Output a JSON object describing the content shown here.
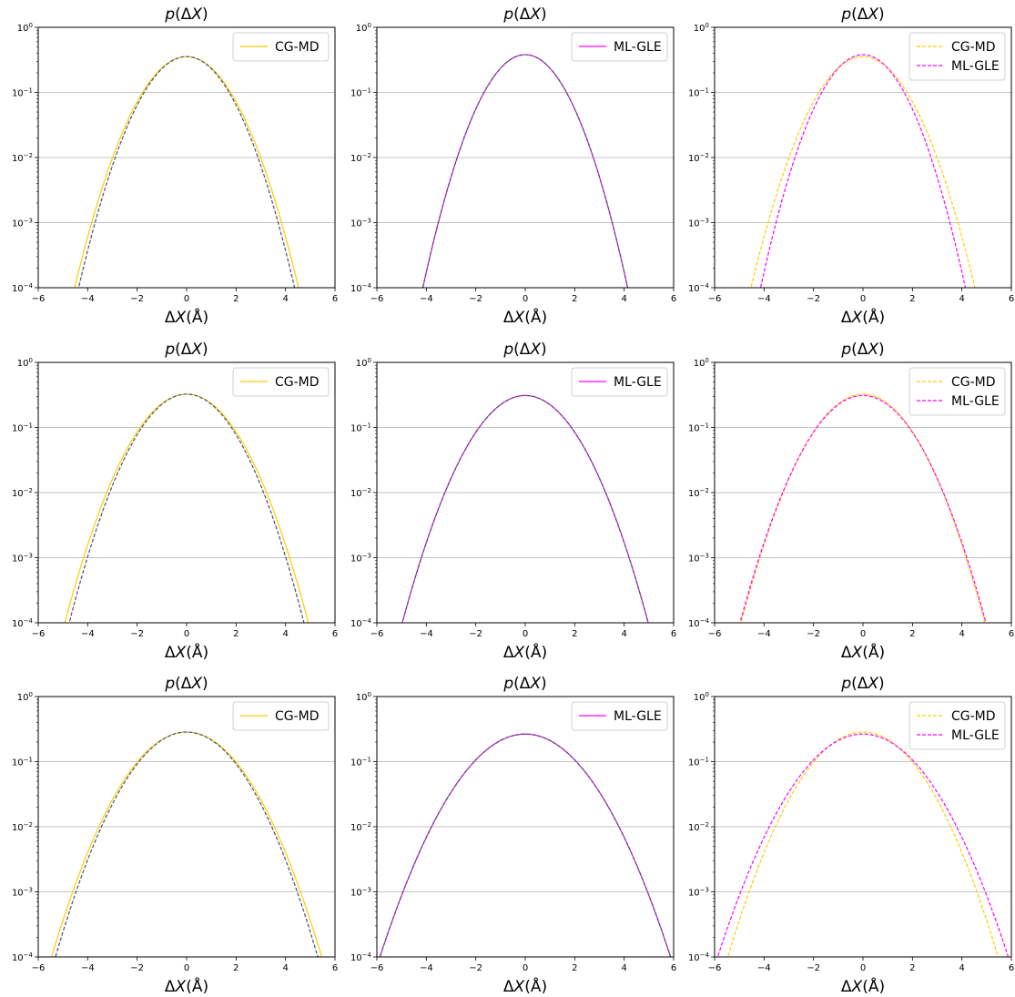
{
  "chart_data": [
    {
      "type": "line",
      "title": "p(ΔX)",
      "xlabel": "ΔX(Å)",
      "ylabel": "",
      "xlim": [
        -6,
        6
      ],
      "ylim": [
        0.0001,
        1
      ],
      "y_scale": "log",
      "x_ticks": [
        "−6",
        "−4",
        "−2",
        "0",
        "2",
        "4",
        "6"
      ],
      "y_ticks": [
        "10−4",
        "10−3",
        "10−2",
        "10−1",
        "100"
      ],
      "grid": "y-major",
      "legend_position": "top-right",
      "series": [
        {
          "name": "CG-MD",
          "style": "solid",
          "color": "#ffcc00",
          "sigma": 1.12,
          "peak": 0.355
        },
        {
          "name": "",
          "style": "dashed",
          "color": "#4a5270",
          "sigma": 1.08,
          "peak": 0.355
        }
      ]
    },
    {
      "type": "line",
      "title": "p(ΔX)",
      "xlabel": "ΔX(Å)",
      "ylabel": "",
      "xlim": [
        -6,
        6
      ],
      "ylim": [
        0.0001,
        1
      ],
      "y_scale": "log",
      "x_ticks": [
        "−6",
        "−4",
        "−2",
        "0",
        "2",
        "4",
        "6"
      ],
      "y_ticks": [
        "10−4",
        "10−3",
        "10−2",
        "10−1",
        "100"
      ],
      "grid": "y-major",
      "legend_position": "top-right",
      "series": [
        {
          "name": "ML-GLE",
          "style": "solid",
          "color": "#ff00ff",
          "sigma": 1.02,
          "peak": 0.38
        },
        {
          "name": "",
          "style": "dashed",
          "color": "#4a5270",
          "sigma": 1.02,
          "peak": 0.38
        }
      ]
    },
    {
      "type": "line",
      "title": "p(ΔX)",
      "xlabel": "ΔX(Å)",
      "ylabel": "",
      "xlim": [
        -6,
        6
      ],
      "ylim": [
        0.0001,
        1
      ],
      "y_scale": "log",
      "x_ticks": [
        "−6",
        "−4",
        "−2",
        "0",
        "2",
        "4",
        "6"
      ],
      "y_ticks": [
        "10−4",
        "10−3",
        "10−2",
        "10−1",
        "100"
      ],
      "grid": "y-major",
      "legend_position": "top-right",
      "series": [
        {
          "name": "CG-MD",
          "style": "dashed",
          "color": "#ffcc00",
          "sigma": 1.12,
          "peak": 0.355
        },
        {
          "name": "ML-GLE",
          "style": "dashed",
          "color": "#ff00ff",
          "sigma": 1.02,
          "peak": 0.38
        }
      ]
    },
    {
      "type": "line",
      "title": "p(ΔX)",
      "xlabel": "ΔX(Å)",
      "ylabel": "",
      "xlim": [
        -6,
        6
      ],
      "ylim": [
        0.0001,
        1
      ],
      "y_scale": "log",
      "x_ticks": [
        "−6",
        "−4",
        "−2",
        "0",
        "2",
        "4",
        "6"
      ],
      "y_ticks": [
        "10−4",
        "10−3",
        "10−2",
        "10−1",
        "100"
      ],
      "grid": "y-major",
      "legend_position": "top-right",
      "series": [
        {
          "name": "CG-MD",
          "style": "solid",
          "color": "#ffcc00",
          "sigma": 1.225,
          "peak": 0.325
        },
        {
          "name": "",
          "style": "dashed",
          "color": "#4a5270",
          "sigma": 1.18,
          "peak": 0.325
        }
      ]
    },
    {
      "type": "line",
      "title": "p(ΔX)",
      "xlabel": "ΔX(Å)",
      "ylabel": "",
      "xlim": [
        -6,
        6
      ],
      "ylim": [
        0.0001,
        1
      ],
      "y_scale": "log",
      "x_ticks": [
        "−6",
        "−4",
        "−2",
        "0",
        "2",
        "4",
        "6"
      ],
      "y_ticks": [
        "10−4",
        "10−3",
        "10−2",
        "10−1",
        "100"
      ],
      "grid": "y-major",
      "legend_position": "top-right",
      "series": [
        {
          "name": "ML-GLE",
          "style": "solid",
          "color": "#ff00ff",
          "sigma": 1.24,
          "peak": 0.31
        },
        {
          "name": "",
          "style": "dashed",
          "color": "#4a5270",
          "sigma": 1.24,
          "peak": 0.31
        }
      ]
    },
    {
      "type": "line",
      "title": "p(ΔX)",
      "xlabel": "ΔX(Å)",
      "ylabel": "",
      "xlim": [
        -6,
        6
      ],
      "ylim": [
        0.0001,
        1
      ],
      "y_scale": "log",
      "x_ticks": [
        "−6",
        "−4",
        "−2",
        "0",
        "2",
        "4",
        "6"
      ],
      "y_ticks": [
        "10−4",
        "10−3",
        "10−2",
        "10−1",
        "100"
      ],
      "grid": "y-major",
      "legend_position": "top-right",
      "series": [
        {
          "name": "CG-MD",
          "style": "dashed",
          "color": "#ffcc00",
          "sigma": 1.225,
          "peak": 0.325
        },
        {
          "name": "ML-GLE",
          "style": "dashed",
          "color": "#ff00ff",
          "sigma": 1.24,
          "peak": 0.31
        }
      ]
    },
    {
      "type": "line",
      "title": "p(ΔX)",
      "xlabel": "ΔX(Å)",
      "ylabel": "",
      "xlim": [
        -6,
        6
      ],
      "ylim": [
        0.0001,
        1
      ],
      "y_scale": "log",
      "x_ticks": [
        "−6",
        "−4",
        "−2",
        "0",
        "2",
        "4",
        "6"
      ],
      "y_ticks": [
        "10−4",
        "10−3",
        "10−2",
        "10−1",
        "100"
      ],
      "grid": "y-major",
      "legend_position": "top-right",
      "series": [
        {
          "name": "CG-MD",
          "style": "solid",
          "color": "#ffcc00",
          "sigma": 1.37,
          "peak": 0.285
        },
        {
          "name": "",
          "style": "dashed",
          "color": "#4a5270",
          "sigma": 1.33,
          "peak": 0.285
        }
      ]
    },
    {
      "type": "line",
      "title": "p(ΔX)",
      "xlabel": "ΔX(Å)",
      "ylabel": "",
      "xlim": [
        -6,
        6
      ],
      "ylim": [
        0.0001,
        1
      ],
      "y_scale": "log",
      "x_ticks": [
        "−6",
        "−4",
        "−2",
        "0",
        "2",
        "4",
        "6"
      ],
      "y_ticks": [
        "10−4",
        "10−3",
        "10−2",
        "10−1",
        "100"
      ],
      "grid": "y-major",
      "legend_position": "top-right",
      "series": [
        {
          "name": "ML-GLE",
          "style": "solid",
          "color": "#ff00ff",
          "sigma": 1.48,
          "peak": 0.265
        },
        {
          "name": "",
          "style": "dashed",
          "color": "#4a5270",
          "sigma": 1.48,
          "peak": 0.265
        }
      ]
    },
    {
      "type": "line",
      "title": "p(ΔX)",
      "xlabel": "ΔX(Å)",
      "ylabel": "",
      "xlim": [
        -6,
        6
      ],
      "ylim": [
        0.0001,
        1
      ],
      "y_scale": "log",
      "x_ticks": [
        "−6",
        "−4",
        "−2",
        "0",
        "2",
        "4",
        "6"
      ],
      "y_ticks": [
        "10−4",
        "10−3",
        "10−2",
        "10−1",
        "100"
      ],
      "grid": "y-major",
      "legend_position": "top-right",
      "series": [
        {
          "name": "CG-MD",
          "style": "dashed",
          "color": "#ffcc00",
          "sigma": 1.37,
          "peak": 0.285
        },
        {
          "name": "ML-GLE",
          "style": "dashed",
          "color": "#ff00ff",
          "sigma": 1.48,
          "peak": 0.265
        }
      ]
    }
  ]
}
